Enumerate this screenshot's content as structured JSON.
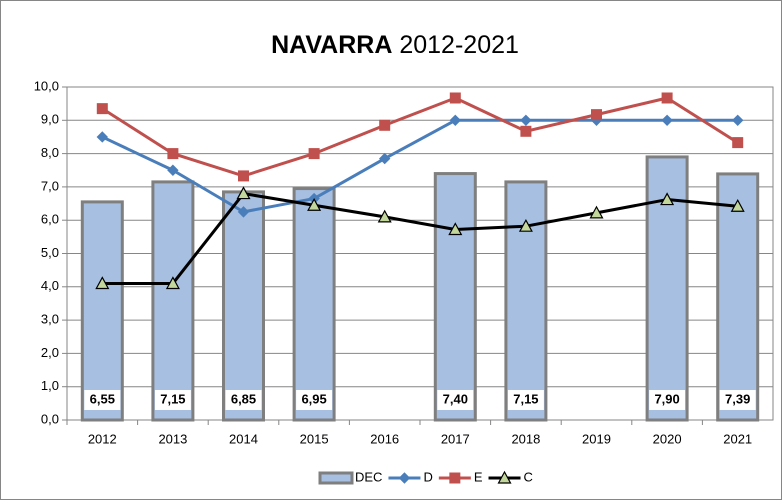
{
  "chart_data": {
    "type": "bar-line",
    "title": {
      "bold": "NAVARRA",
      "rest": "2012-2021"
    },
    "categories": [
      "2012",
      "2013",
      "2014",
      "2015",
      "2016",
      "2017",
      "2018",
      "2019",
      "2020",
      "2021"
    ],
    "ylim": [
      0,
      10
    ],
    "yticks": [
      {
        "value": 0,
        "label": "0,0"
      },
      {
        "value": 1,
        "label": "1,0"
      },
      {
        "value": 2,
        "label": "2,0"
      },
      {
        "value": 3,
        "label": "3,0"
      },
      {
        "value": 4,
        "label": "4,0"
      },
      {
        "value": 5,
        "label": "5,0"
      },
      {
        "value": 6,
        "label": "6,0"
      },
      {
        "value": 7,
        "label": "7,0"
      },
      {
        "value": 8,
        "label": "8,0"
      },
      {
        "value": 9,
        "label": "9,0"
      },
      {
        "value": 10,
        "label": "10,0"
      }
    ],
    "grid": true,
    "legend": "bottom",
    "series": [
      {
        "name": "DEC",
        "type": "bar",
        "color": "#a7bfe0",
        "values": [
          6.55,
          7.15,
          6.85,
          6.95,
          null,
          7.4,
          7.15,
          null,
          7.9,
          7.39
        ],
        "value_labels": [
          "6,55",
          "7,15",
          "6,85",
          "6,95",
          null,
          "7,40",
          "7,15",
          null,
          "7,90",
          "7,39"
        ]
      },
      {
        "name": "D",
        "type": "line",
        "color": "#4a7ebb",
        "marker": "diamond",
        "values": [
          8.5,
          7.5,
          6.25,
          6.65,
          7.85,
          9.0,
          9.0,
          9.0,
          9.0,
          9.0
        ]
      },
      {
        "name": "E",
        "type": "line",
        "color": "#c0504d",
        "marker": "square",
        "values": [
          9.35,
          8.0,
          7.33,
          8.0,
          8.85,
          9.67,
          8.67,
          9.17,
          9.67,
          8.33
        ]
      },
      {
        "name": "C",
        "type": "line",
        "color": "#000000",
        "marker": "triangle",
        "values": [
          4.1,
          4.1,
          6.8,
          6.45,
          6.1,
          5.72,
          5.82,
          6.22,
          6.62,
          6.42
        ]
      }
    ]
  }
}
